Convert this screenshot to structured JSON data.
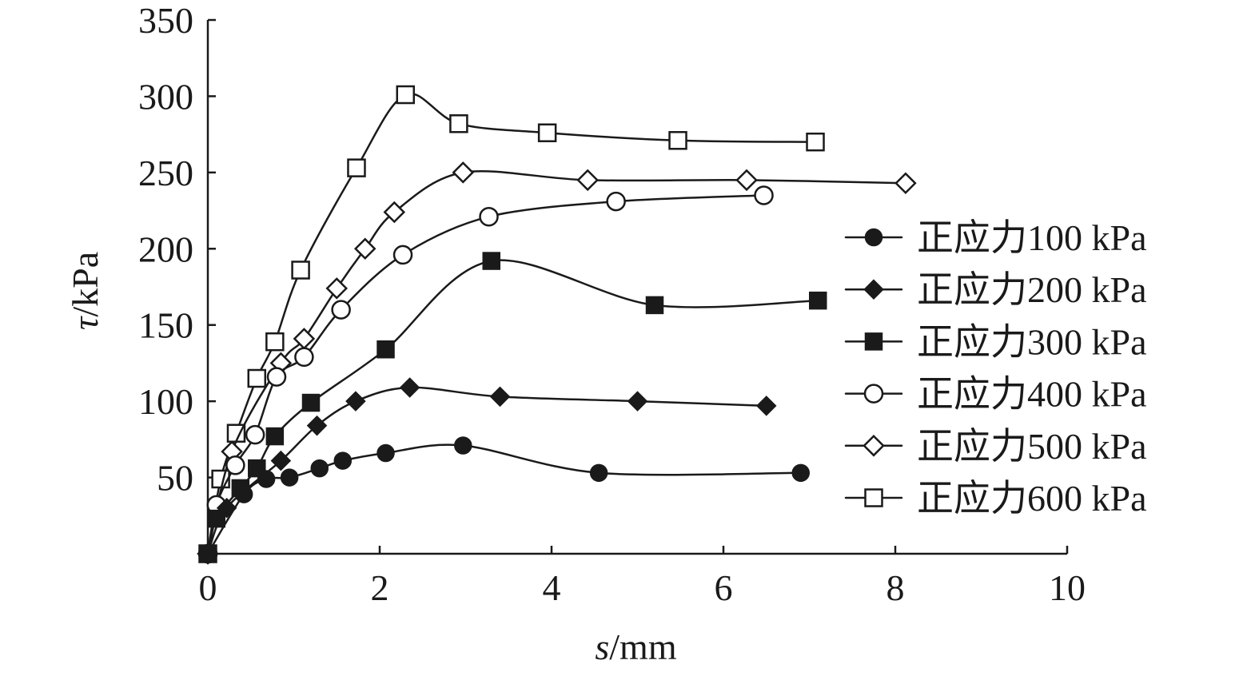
{
  "chart_data": {
    "type": "line",
    "title": "",
    "xlabel_italic": "s",
    "xlabel_unit": "/mm",
    "ylabel_italic": "τ",
    "ylabel_unit": "/kPa",
    "xlim": [
      0,
      10
    ],
    "ylim": [
      0,
      350
    ],
    "xticks": [
      0,
      2,
      4,
      6,
      8,
      10
    ],
    "yticks": [
      50,
      100,
      150,
      200,
      250,
      300,
      350
    ],
    "grid": false,
    "legend_position": "right",
    "series": [
      {
        "name": "正应力100 kPa",
        "marker": "circle-filled",
        "x": [
          0,
          0.42,
          0.68,
          0.95,
          1.3,
          1.57,
          2.07,
          2.97,
          4.55,
          6.9
        ],
        "y": [
          0,
          39,
          49,
          50,
          56,
          61,
          66,
          71,
          53,
          53
        ]
      },
      {
        "name": "正应力200 kPa",
        "marker": "diamond-filled",
        "x": [
          0,
          0.22,
          0.85,
          1.27,
          1.72,
          2.35,
          3.4,
          5.0,
          6.5
        ],
        "y": [
          0,
          30,
          61,
          84,
          100,
          109,
          103,
          100,
          97
        ]
      },
      {
        "name": "正应力300 kPa",
        "marker": "square-filled",
        "x": [
          0,
          0.1,
          0.38,
          0.57,
          0.78,
          1.2,
          2.07,
          3.3,
          5.2,
          7.1
        ],
        "y": [
          0,
          23,
          43,
          56,
          77,
          99,
          134,
          192,
          163,
          166
        ]
      },
      {
        "name": "正应力400 kPa",
        "marker": "circle-open",
        "x": [
          0,
          0.1,
          0.32,
          0.55,
          0.8,
          1.12,
          1.55,
          2.27,
          3.27,
          4.75,
          6.47
        ],
        "y": [
          0,
          32,
          58,
          78,
          116,
          129,
          160,
          196,
          221,
          231,
          235
        ]
      },
      {
        "name": "正应力500 kPa",
        "marker": "diamond-open",
        "x": [
          0,
          0.28,
          0.85,
          1.12,
          1.5,
          1.83,
          2.17,
          2.97,
          4.42,
          6.27,
          8.12
        ],
        "y": [
          0,
          67,
          125,
          141,
          174,
          200,
          224,
          250,
          245,
          245,
          243
        ]
      },
      {
        "name": "正应力600 kPa",
        "marker": "square-open",
        "x": [
          0,
          0.15,
          0.33,
          0.57,
          0.78,
          1.08,
          1.73,
          2.3,
          2.92,
          3.95,
          5.47,
          7.07
        ],
        "y": [
          0,
          49,
          79,
          115,
          139,
          186,
          253,
          301,
          282,
          276,
          271,
          270
        ]
      }
    ]
  }
}
